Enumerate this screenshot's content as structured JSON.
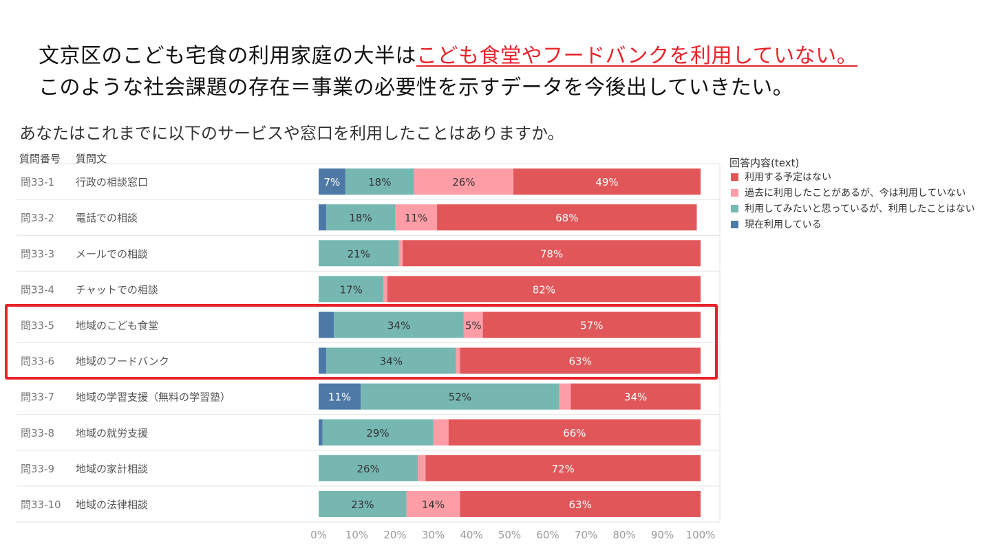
{
  "headline": {
    "line1_plain": "文京区のこども宅食の利用家庭の大半は",
    "line1_emphasis": "こども食堂やフードバンクを利用していない。",
    "line2": "このような社会課題の存在＝事業の必要性を示すデータを今後出していきたい。"
  },
  "chart_data": {
    "type": "bar",
    "orientation": "horizontal",
    "stacked": "100%",
    "title": "あなたはこれまでに以下のサービスや窓口を利用したことはありますか。",
    "column_headers": {
      "number": "質問番号",
      "question": "質問文"
    },
    "legend_title": "回答内容(text)",
    "legend_placement": "right",
    "categories": [
      {
        "id": "問33-1",
        "label": "行政の相談窓口"
      },
      {
        "id": "問33-2",
        "label": "電話での相談"
      },
      {
        "id": "問33-3",
        "label": "メールでの相談"
      },
      {
        "id": "問33-4",
        "label": "チャットでの相談"
      },
      {
        "id": "問33-5",
        "label": "地域のこども食堂"
      },
      {
        "id": "問33-6",
        "label": "地域のフードバンク"
      },
      {
        "id": "問33-7",
        "label": "地域の学習支援（無料の学習塾）"
      },
      {
        "id": "問33-8",
        "label": "地域の就労支援"
      },
      {
        "id": "問33-9",
        "label": "地域の家計相談"
      },
      {
        "id": "問33-10",
        "label": "地域の法律相談"
      }
    ],
    "series": [
      {
        "name": "現在利用している",
        "color": "#4e79a7",
        "values": [
          7,
          2,
          0,
          0,
          4,
          2,
          11,
          1,
          0,
          0
        ],
        "labels": [
          "7%",
          "",
          "",
          "",
          "",
          "",
          "11%",
          "",
          "",
          ""
        ]
      },
      {
        "name": "利用してみたいと思っているが、利用したことはない",
        "color": "#76b7b2",
        "values": [
          18,
          18,
          21,
          17,
          34,
          34,
          52,
          29,
          26,
          23
        ],
        "labels": [
          "18%",
          "18%",
          "21%",
          "17%",
          "34%",
          "34%",
          "52%",
          "29%",
          "26%",
          "23%"
        ]
      },
      {
        "name": "過去に利用したことがあるが、今は利用していない",
        "color": "#ff9da7",
        "values": [
          26,
          11,
          1,
          1,
          5,
          1,
          3,
          4,
          2,
          14
        ],
        "labels": [
          "26%",
          "11%",
          "",
          "",
          "5%",
          "",
          "",
          "",
          "",
          "14%"
        ]
      },
      {
        "name": "利用する予定はない",
        "color": "#e15759",
        "values": [
          49,
          68,
          78,
          82,
          57,
          63,
          34,
          66,
          72,
          63
        ],
        "labels": [
          "49%",
          "68%",
          "78%",
          "82%",
          "57%",
          "63%",
          "34%",
          "66%",
          "72%",
          "63%"
        ]
      }
    ],
    "legend_order": [
      "利用する予定はない",
      "過去に利用したことがあるが、今は利用していない",
      "利用してみたいと思っているが、利用したことはない",
      "現在利用している"
    ],
    "x_ticks": [
      "0%",
      "10%",
      "20%",
      "30%",
      "40%",
      "50%",
      "60%",
      "70%",
      "80%",
      "90%",
      "100%"
    ],
    "xlim": [
      0,
      100
    ],
    "highlighted_categories": [
      "問33-5",
      "問33-6"
    ],
    "highlight_color": "#e8232a"
  }
}
